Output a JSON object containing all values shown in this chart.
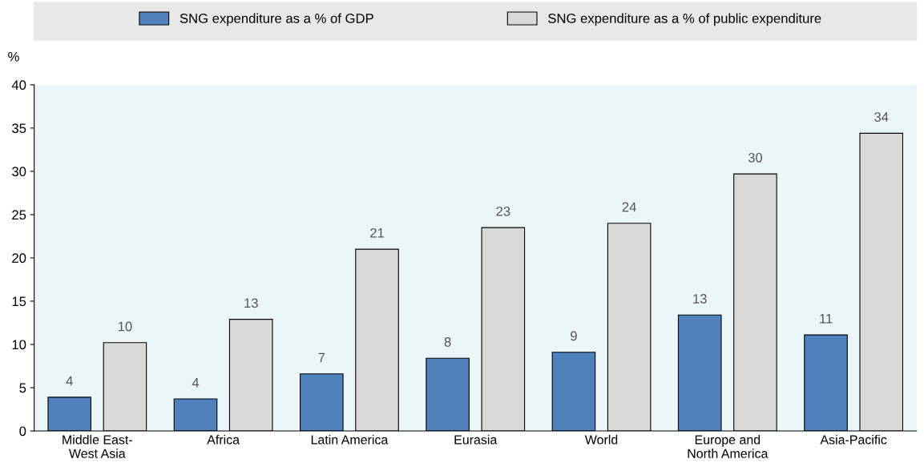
{
  "chart_data": {
    "type": "bar",
    "ylabel": "%",
    "categories": [
      "Middle East-\nWest Asia",
      "Africa",
      "Latin America",
      "Eurasia",
      "World",
      "Europe and\nNorth America",
      "Asia-Pacific"
    ],
    "series": [
      {
        "name": "SNG expenditure as a % of GDP",
        "color": "#4f81bd",
        "values": [
          3.9,
          3.7,
          6.6,
          8.4,
          9.1,
          13.4,
          11.1
        ],
        "value_labels": [
          "4",
          "4",
          "7",
          "8",
          "9",
          "13",
          "11"
        ]
      },
      {
        "name": "SNG expenditure as a % of public expenditure",
        "color": "#d9d9d9",
        "values": [
          10.2,
          12.9,
          21.0,
          23.5,
          24.0,
          29.7,
          34.4
        ],
        "value_labels": [
          "10",
          "13",
          "21",
          "23",
          "24",
          "30",
          "34"
        ]
      }
    ],
    "ylim": [
      0,
      40
    ],
    "yticks": [
      0,
      5,
      10,
      15,
      20,
      25,
      30,
      35,
      40
    ],
    "grid": false,
    "legend": "top"
  }
}
